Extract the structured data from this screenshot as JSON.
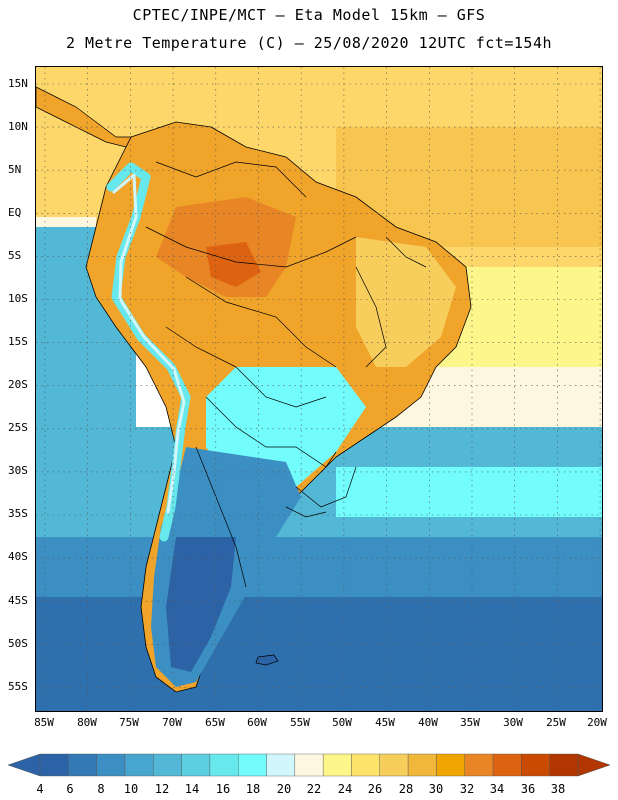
{
  "title_line1": "CPTEC/INPE/MCT –  Eta Model 15km – GFS",
  "title_line2": "2 Metre Temperature (C) – 25/08/2020 12UTC fct=154h",
  "lat_labels": [
    "15N",
    "10N",
    "5N",
    "EQ",
    "5S",
    "10S",
    "15S",
    "20S",
    "25S",
    "30S",
    "35S",
    "40S",
    "45S",
    "50S",
    "55S"
  ],
  "lon_labels": [
    "85W",
    "80W",
    "75W",
    "70W",
    "65W",
    "60W",
    "55W",
    "50W",
    "45W",
    "40W",
    "35W",
    "30W",
    "25W",
    "20W"
  ],
  "colorbar": {
    "labels": [
      "4",
      "6",
      "8",
      "10",
      "12",
      "14",
      "16",
      "18",
      "20",
      "22",
      "24",
      "26",
      "28",
      "30",
      "32",
      "34",
      "36",
      "38"
    ],
    "colors": [
      "#2b63a6",
      "#3279b5",
      "#3c8fc3",
      "#47a5ce",
      "#52b8d6",
      "#5ccfe0",
      "#66e8ed",
      "#72fcfc",
      "#d1f6fc",
      "#fdf7e0",
      "#fdf78b",
      "#fde36a",
      "#f7cd5c",
      "#f0b73a",
      "#f0a500",
      "#e88525",
      "#dd6310",
      "#c94a00",
      "#b13600"
    ]
  },
  "map_colors": {
    "ocean_warm": "#fdd76a",
    "ocean_mid": "#f8c650",
    "ocean_cool": "#52b8d6",
    "ocean_cold": "#3c8fc3",
    "ocean_colder": "#2e6fae",
    "land_hot": "#e88525",
    "land_warm": "#f0a52a",
    "land_mild": "#f7cd5c",
    "andes": "#66e8ed",
    "south_land": "#2b63a6",
    "border": "#000000"
  }
}
